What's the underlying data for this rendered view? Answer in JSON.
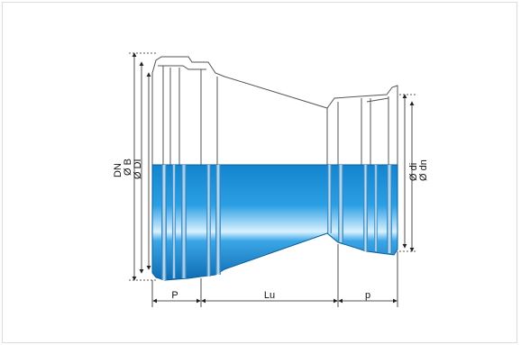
{
  "diagram": {
    "labels": {
      "dn_upper": "DN",
      "b_diameter": "Ø B",
      "di_diameter": "Ø DI",
      "small_di": "Ø di",
      "small_dn": "Ø dn",
      "socket_length_p_upper": "P",
      "useful_length": "Lu",
      "socket_length_p_lower": "p"
    },
    "colors": {
      "pipe_blue": "#1b8fd6",
      "pipe_dark": "#0f6fb5",
      "pipe_highlight": "#e9f6ff",
      "outline": "#555555",
      "dimension_line": "#222222"
    }
  }
}
